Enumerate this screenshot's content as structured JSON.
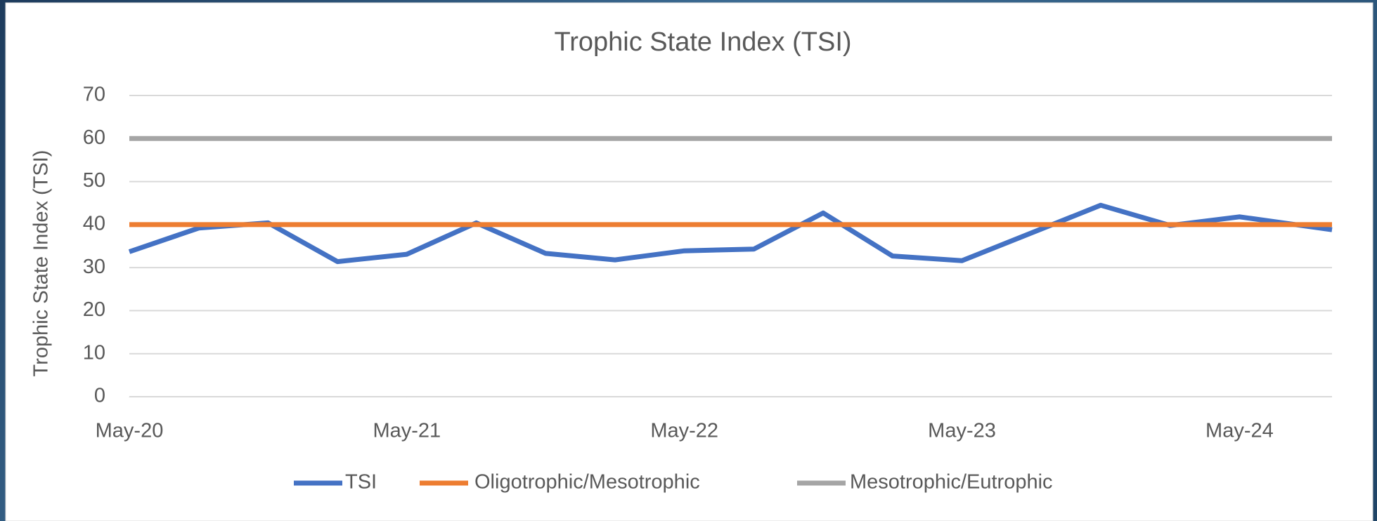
{
  "chart_data": {
    "type": "line",
    "title": "Trophic State Index (TSI)",
    "y_label": "Trophic State Index (TSI)",
    "x": [
      "2020-05",
      "2020-08",
      "2020-11",
      "2021-02",
      "2021-05",
      "2021-08",
      "2021-11",
      "2022-02",
      "2022-05",
      "2022-08",
      "2022-11",
      "2023-02",
      "2023-05",
      "2023-11",
      "2024-02",
      "2024-05",
      "2024-09"
    ],
    "series": [
      {
        "name": "TSI",
        "color": "#4472c4",
        "values": [
          33.7,
          39.2,
          40.4,
          31.4,
          33.1,
          40.4,
          33.3,
          31.8,
          33.9,
          34.3,
          42.7,
          32.7,
          31.6,
          44.5,
          39.8,
          41.8,
          38.8
        ]
      },
      {
        "name": "Oligotrophic/Mesotrophic",
        "color": "#ed7d31",
        "values": [
          40,
          40,
          40,
          40,
          40,
          40,
          40,
          40,
          40,
          40,
          40,
          40,
          40,
          40,
          40,
          40,
          40
        ]
      },
      {
        "name": "Mesotrophic/Eutrophic",
        "color": "#a5a5a5",
        "values": [
          60,
          60,
          60,
          60,
          60,
          60,
          60,
          60,
          60,
          60,
          60,
          60,
          60,
          60,
          60,
          60,
          60
        ]
      }
    ],
    "xlim": [
      "2020-05",
      "2024-09"
    ],
    "xticks": [
      {
        "value": "2020-05",
        "label": "May-20"
      },
      {
        "value": "2021-05",
        "label": "May-21"
      },
      {
        "value": "2022-05",
        "label": "May-22"
      },
      {
        "value": "2023-05",
        "label": "May-23"
      },
      {
        "value": "2024-05",
        "label": "May-24"
      }
    ],
    "ylim": [
      0,
      70
    ],
    "yticks": [
      0,
      10,
      20,
      30,
      40,
      50,
      60,
      70
    ],
    "grid": true,
    "legend": "bottom"
  }
}
